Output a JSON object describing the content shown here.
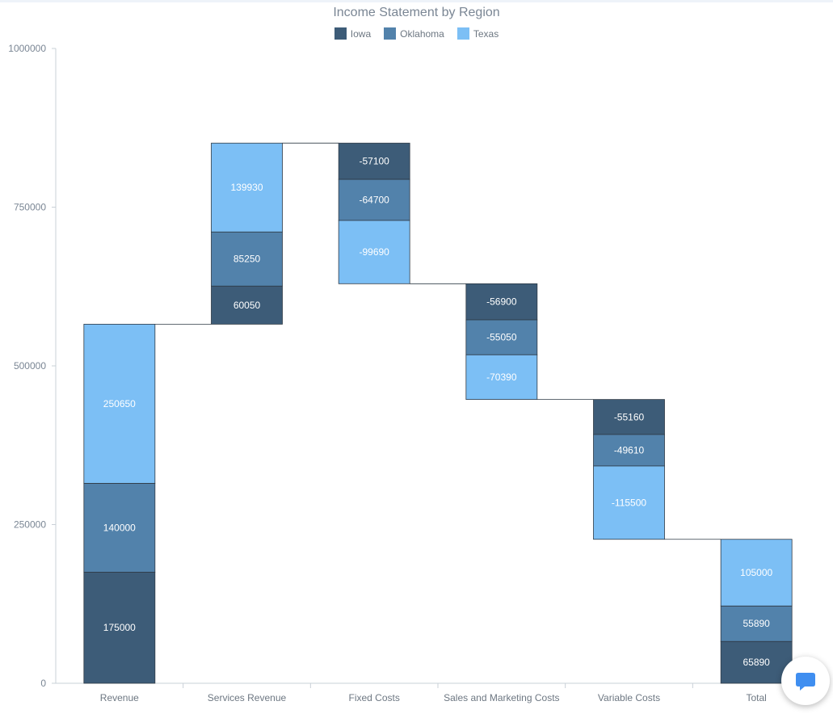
{
  "chart_data": {
    "type": "bar",
    "title": "Income Statement by Region",
    "categories": [
      "Revenue",
      "Services Revenue",
      "Fixed Costs",
      "Sales and Marketing Costs",
      "Variable Costs",
      "Total"
    ],
    "series": [
      {
        "name": "Iowa",
        "color": "#3d5c78",
        "values": [
          175000,
          60050,
          -57100,
          -56900,
          -55160,
          65890
        ]
      },
      {
        "name": "Oklahoma",
        "color": "#5282ab",
        "values": [
          140000,
          85250,
          -64700,
          -55050,
          -49610,
          55890
        ]
      },
      {
        "name": "Texas",
        "color": "#7cbff5",
        "values": [
          250650,
          139930,
          -99690,
          -70390,
          -115500,
          105000
        ]
      }
    ],
    "ylim": [
      0,
      1000000
    ],
    "yticks": [
      0,
      250000,
      500000,
      750000,
      1000000
    ],
    "legend_position": "top-center",
    "grid": false,
    "waterfall": true
  },
  "widget": {
    "chat_icon": "chat-bubble-icon"
  }
}
